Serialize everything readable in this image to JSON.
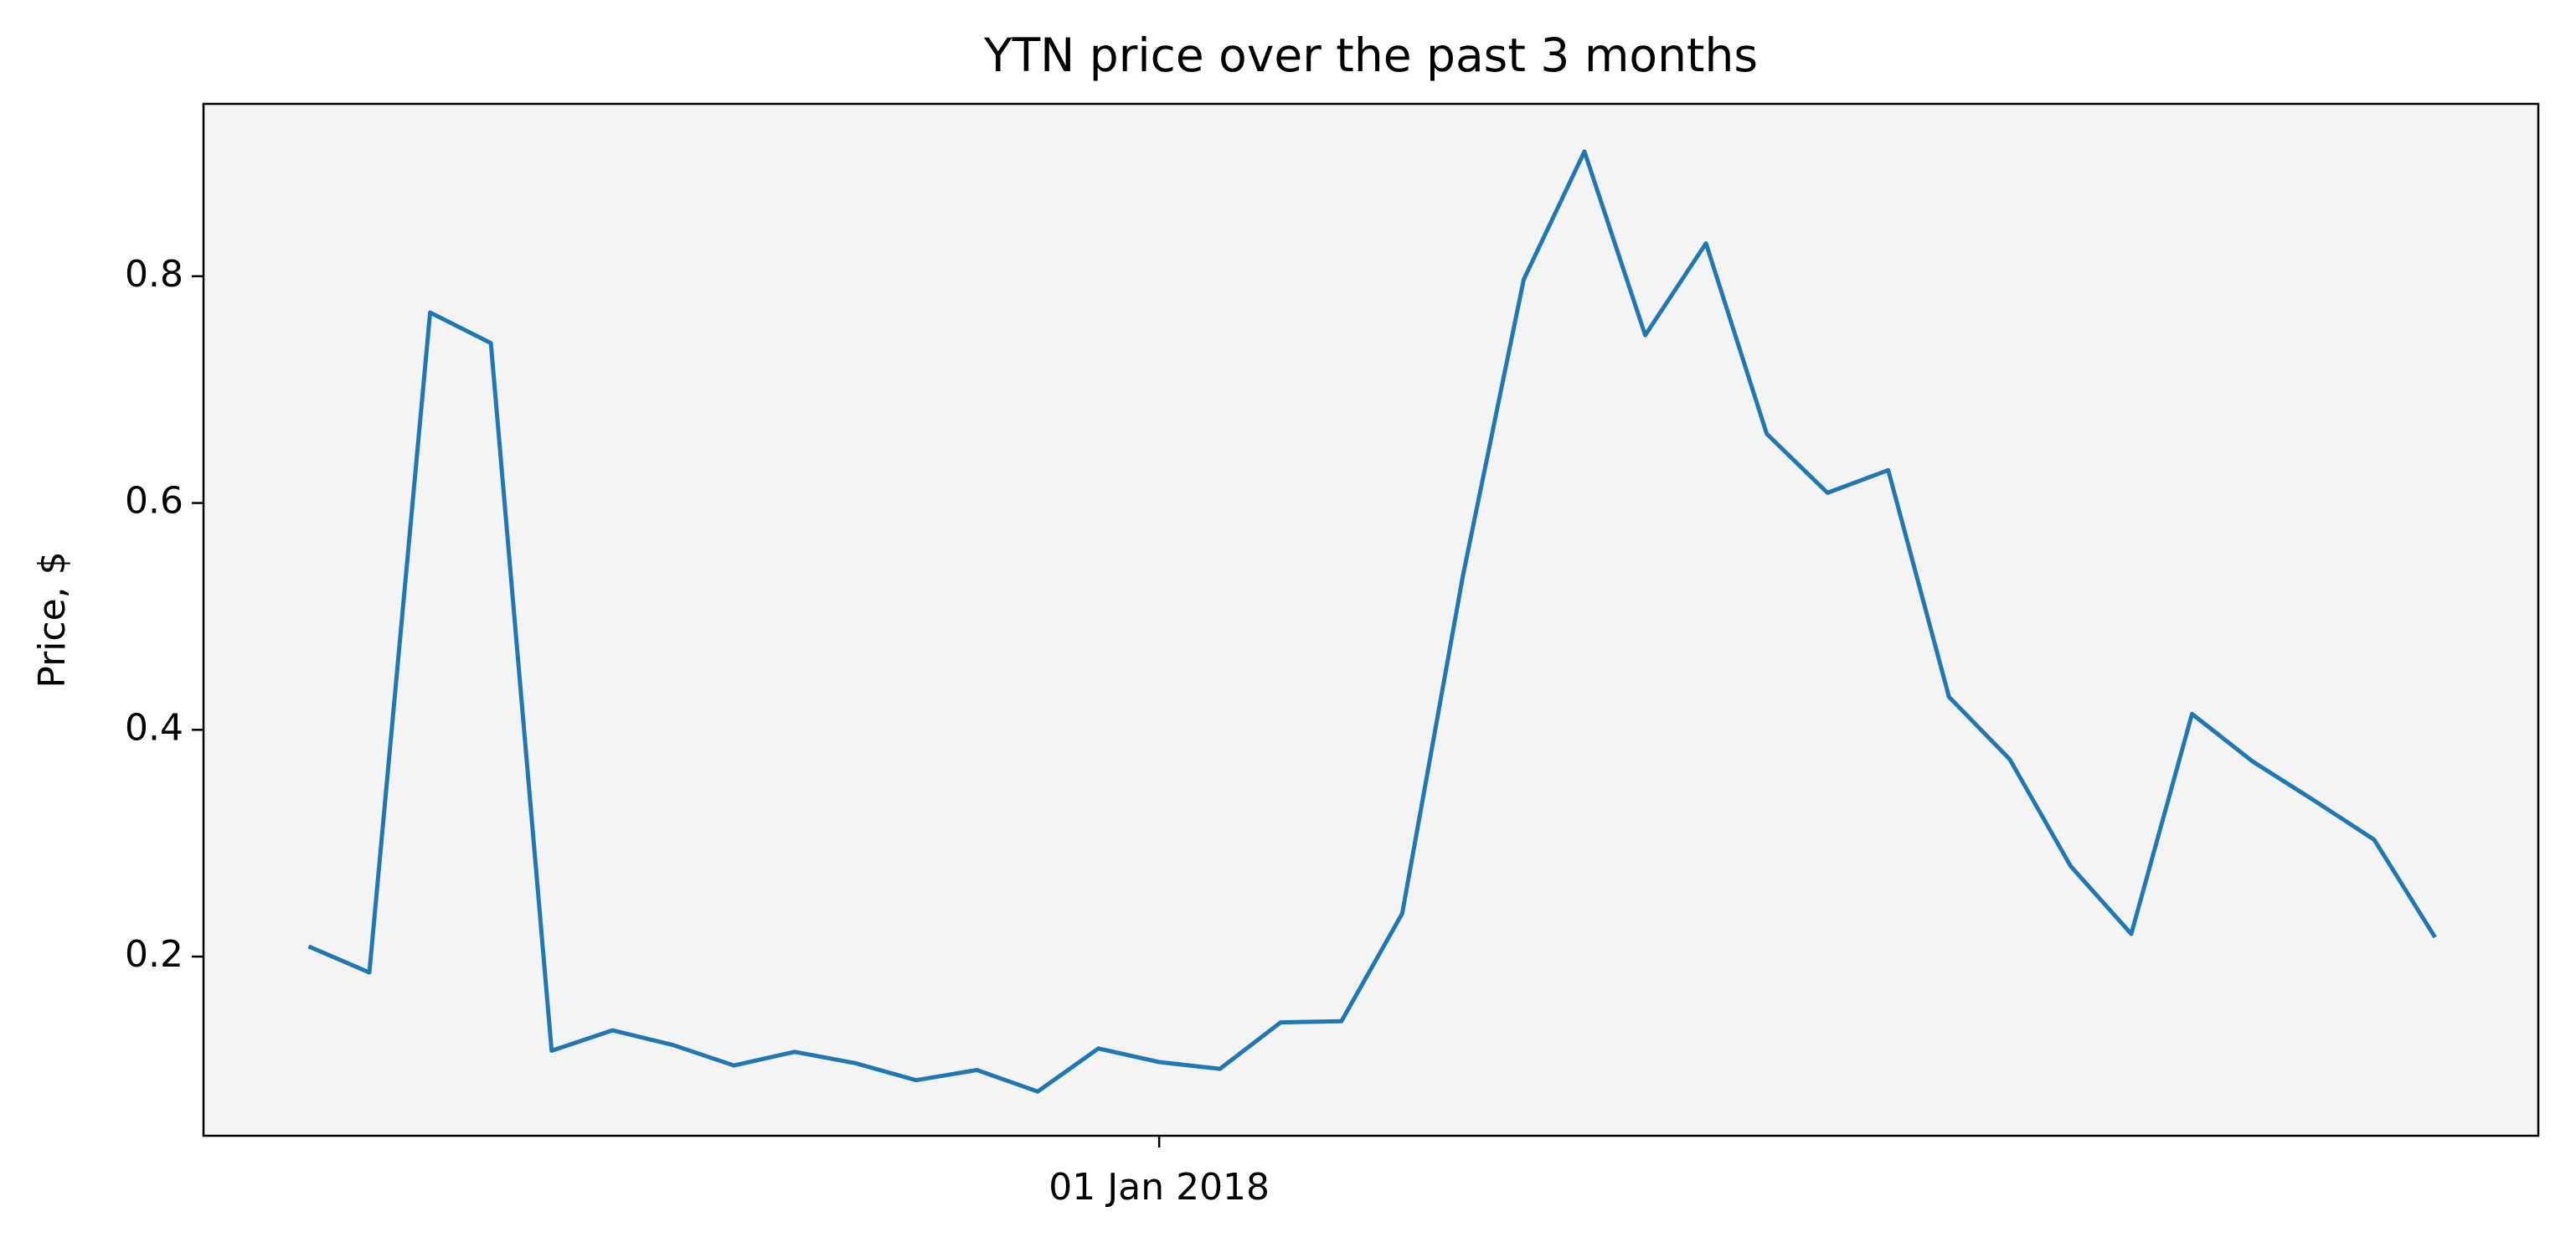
{
  "chart_data": {
    "type": "line",
    "title": "YTN price over the past 3 months",
    "y_label": "Price, $",
    "x": [
      0,
      1,
      2,
      3,
      4,
      5,
      6,
      7,
      8,
      9,
      10,
      11,
      12,
      13,
      14,
      15,
      16,
      17,
      18,
      19,
      20,
      21,
      22,
      23,
      24,
      25,
      26,
      27,
      28,
      29,
      30,
      31,
      32,
      33,
      34,
      35
    ],
    "series": [
      {
        "name": "YTN",
        "color": "#1f77b4",
        "values": [
          0.209,
          0.186,
          0.768,
          0.741,
          0.117,
          0.135,
          0.122,
          0.104,
          0.116,
          0.106,
          0.091,
          0.1,
          0.081,
          0.119,
          0.107,
          0.101,
          0.142,
          0.143,
          0.238,
          0.536,
          0.797,
          0.91,
          0.748,
          0.829,
          0.661,
          0.609,
          0.629,
          0.429,
          0.374,
          0.28,
          0.22,
          0.414,
          0.372,
          0.338,
          0.303,
          0.217
        ]
      }
    ],
    "xlim": [
      -1.73,
      36.7
    ],
    "xticks": [
      {
        "value": 14,
        "label": "01 Jan 2018"
      }
    ],
    "ylim": [
      0.042,
      0.952
    ],
    "yticks": [
      0.2,
      0.4,
      0.6,
      0.8
    ],
    "plot_background": "#f4f4f4"
  }
}
